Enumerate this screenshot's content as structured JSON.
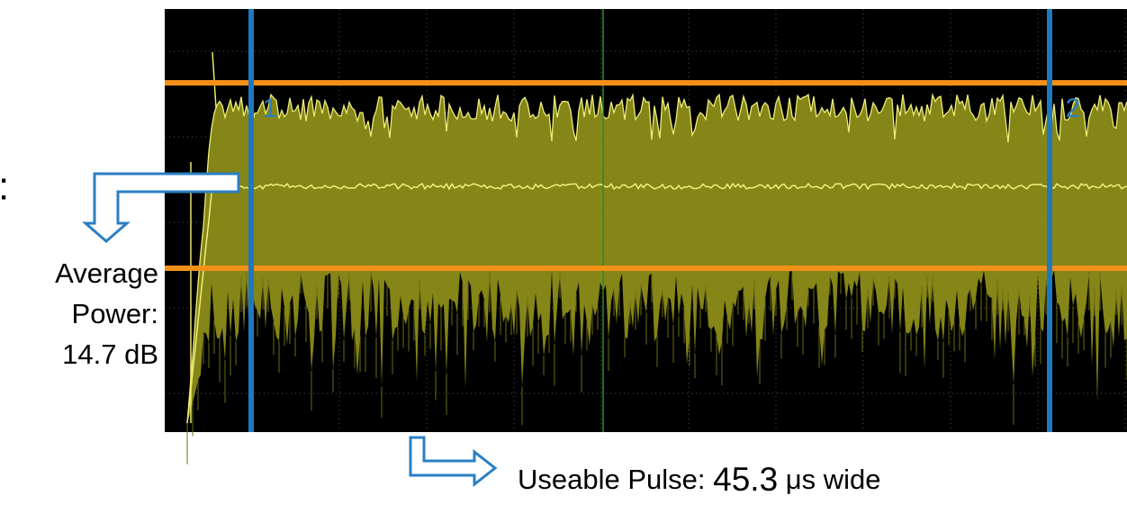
{
  "edge_text": ":",
  "markers": [
    {
      "label": "1"
    },
    {
      "label": "2"
    }
  ],
  "annotations": {
    "average_power": {
      "lines": [
        "Average",
        "Power:",
        "14.7 dB"
      ]
    },
    "useable_pulse": {
      "label": "Useable Pulse:",
      "value": "45.3",
      "unit": "μs wide"
    }
  }
}
